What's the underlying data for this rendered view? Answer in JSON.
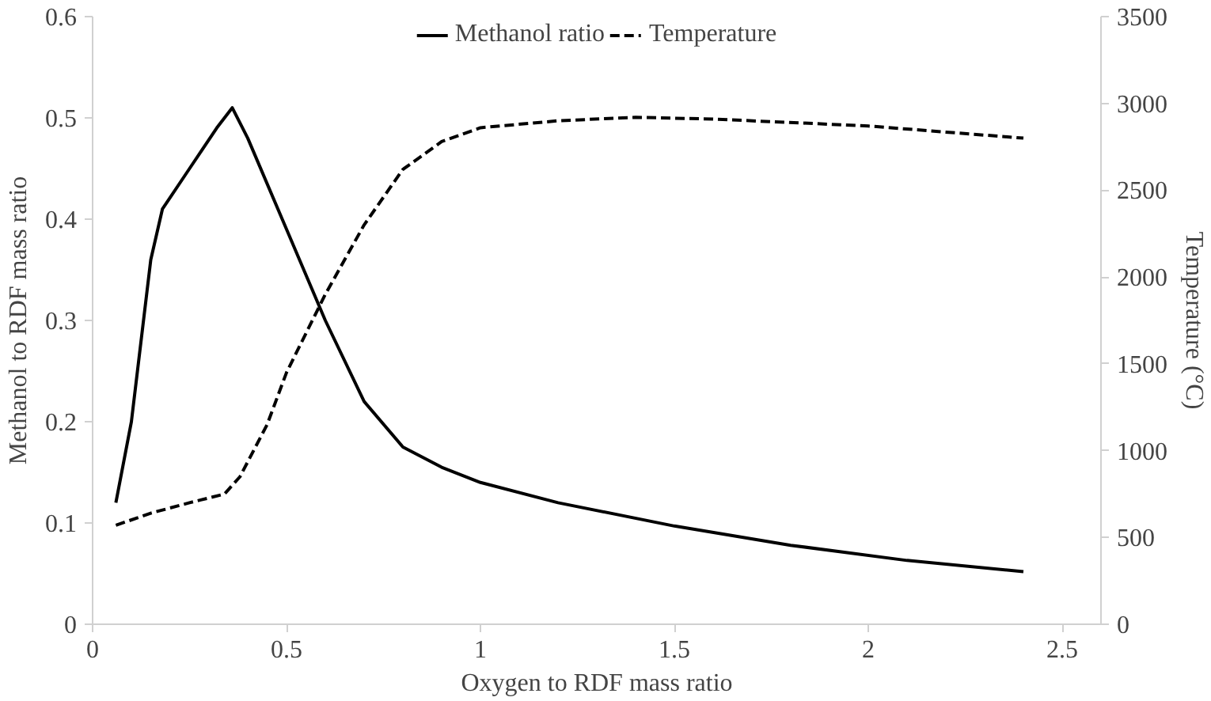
{
  "chart_data": {
    "type": "line",
    "xlabel": "Oxygen to RDF mass ratio",
    "ylabel": "Methanol to RDF mass ratio",
    "y2label": "Temperature (°C)",
    "xlim": [
      0,
      2.6
    ],
    "xticks": [
      0,
      0.5,
      1,
      1.5,
      2,
      2.5
    ],
    "ylim": [
      0,
      0.6
    ],
    "yticks": [
      0,
      0.1,
      0.2,
      0.3,
      0.4,
      0.5,
      0.6
    ],
    "y2lim": [
      0,
      3500
    ],
    "y2ticks": [
      0,
      500,
      1000,
      1500,
      2000,
      2500,
      3000,
      3500
    ],
    "grid": false,
    "legend": "top",
    "marker": "none",
    "series": [
      {
        "name": "Methanol ratio",
        "color": "#000000",
        "line_style": "solid",
        "x": [
          0.06,
          0.1,
          0.15,
          0.18,
          0.25,
          0.32,
          0.36,
          0.4,
          0.5,
          0.6,
          0.7,
          0.8,
          0.9,
          1.0,
          1.2,
          1.5,
          1.8,
          2.1,
          2.4
        ],
        "values": [
          0.12,
          0.2,
          0.36,
          0.41,
          0.45,
          0.49,
          0.51,
          0.48,
          0.39,
          0.3,
          0.22,
          0.175,
          0.155,
          0.14,
          0.12,
          0.097,
          0.078,
          0.063,
          0.052
        ]
      },
      {
        "name": "Temperature",
        "color": "#000000",
        "line_style": "dashed",
        "axis": "y2",
        "x": [
          0.06,
          0.15,
          0.25,
          0.34,
          0.38,
          0.45,
          0.5,
          0.6,
          0.7,
          0.8,
          0.9,
          1.0,
          1.2,
          1.4,
          1.6,
          2.0,
          2.4
        ],
        "values": [
          570,
          640,
          700,
          750,
          850,
          1150,
          1450,
          1900,
          2300,
          2620,
          2780,
          2860,
          2900,
          2920,
          2910,
          2870,
          2800
        ]
      }
    ]
  }
}
